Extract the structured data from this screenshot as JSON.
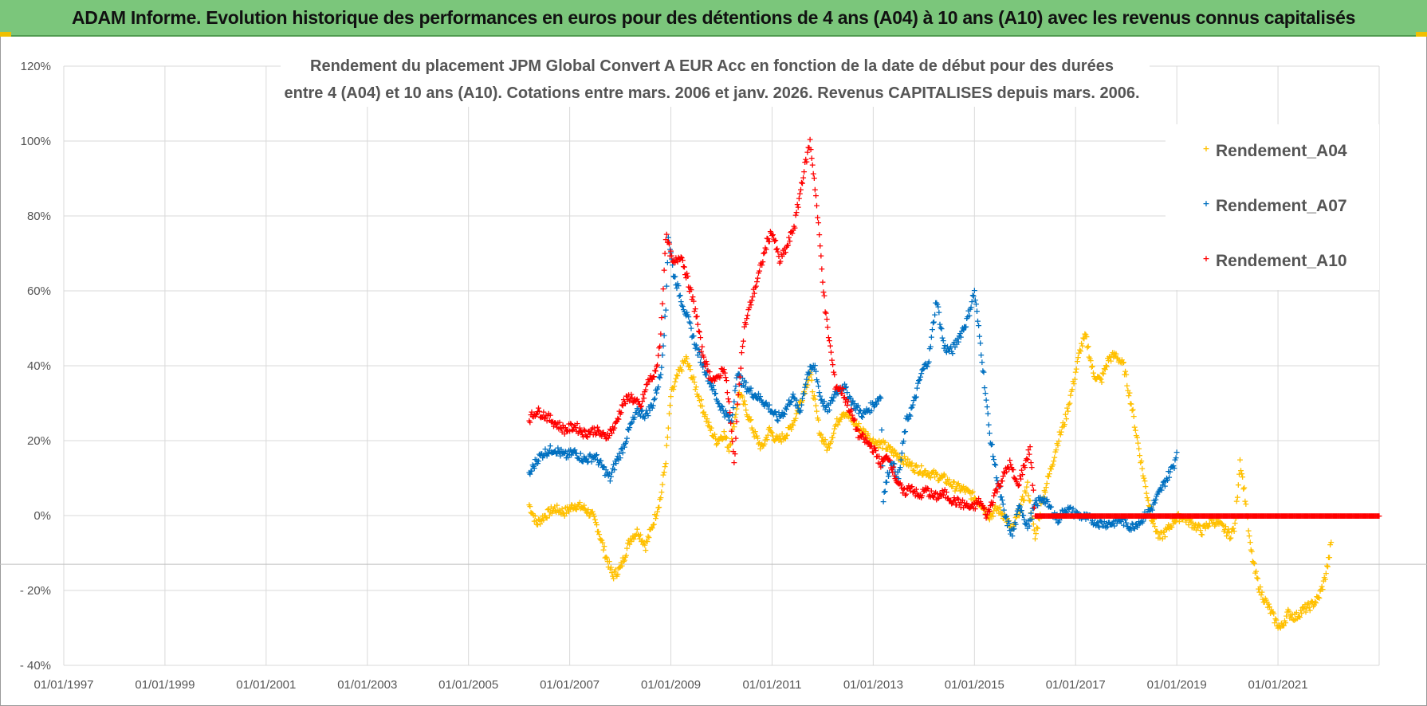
{
  "banner": {
    "text": "ADAM Informe. Evolution historique des performances en euros pour des détentions de 4 ans (A04) à 10 ans (A10) avec les revenus connus capitalisés"
  },
  "chart_data": {
    "type": "scatter",
    "title_lines": [
      "Rendement du placement JPM Global Convert A EUR Acc en fonction de la date de début pour des durées",
      "entre 4 (A04) et 10 ans (A10).  Cotations entre mars. 2006 et janv. 2026.  Revenus CAPITALISES depuis mars. 2006."
    ],
    "marker": "+",
    "xlim": [
      1997.0,
      2023.0
    ],
    "ylim": [
      -40,
      120
    ],
    "x_ticks": [
      1997,
      1999,
      2001,
      2003,
      2005,
      2007,
      2009,
      2011,
      2013,
      2015,
      2017,
      2019,
      2021
    ],
    "x_tick_labels": [
      "01/01/1997",
      "01/01/1999",
      "01/01/2001",
      "01/01/2003",
      "01/01/2005",
      "01/01/2007",
      "01/01/2009",
      "01/01/2011",
      "01/01/2013",
      "01/01/2015",
      "01/01/2017",
      "01/01/2019",
      "01/01/2021"
    ],
    "y_ticks": [
      -40,
      -20,
      0,
      20,
      40,
      60,
      80,
      100,
      120
    ],
    "y_tick_labels": [
      "- 40%",
      "- 20%",
      "0%",
      "20%",
      "40%",
      "60%",
      "80%",
      "100%",
      "120%"
    ],
    "grid": true,
    "legend_position": "top-right",
    "series": [
      {
        "name": "Rendement_A04",
        "color": "#ffc000",
        "points": [
          [
            2006.2,
            3
          ],
          [
            2006.35,
            -2
          ],
          [
            2006.5,
            0
          ],
          [
            2006.7,
            2
          ],
          [
            2006.9,
            1
          ],
          [
            2007.1,
            3
          ],
          [
            2007.3,
            2
          ],
          [
            2007.45,
            0
          ],
          [
            2007.55,
            -3
          ],
          [
            2007.7,
            -10
          ],
          [
            2007.85,
            -16
          ],
          [
            2008.0,
            -14
          ],
          [
            2008.2,
            -6
          ],
          [
            2008.35,
            -4
          ],
          [
            2008.5,
            -8
          ],
          [
            2008.65,
            -2
          ],
          [
            2008.8,
            5
          ],
          [
            2008.9,
            15
          ],
          [
            2009.0,
            32
          ],
          [
            2009.15,
            38
          ],
          [
            2009.3,
            42
          ],
          [
            2009.45,
            36
          ],
          [
            2009.6,
            30
          ],
          [
            2009.75,
            24
          ],
          [
            2009.9,
            20
          ],
          [
            2010.05,
            22
          ],
          [
            2010.15,
            18
          ],
          [
            2010.25,
            25
          ],
          [
            2010.35,
            33
          ],
          [
            2010.5,
            28
          ],
          [
            2010.65,
            22
          ],
          [
            2010.8,
            18
          ],
          [
            2010.95,
            23
          ],
          [
            2011.1,
            20
          ],
          [
            2011.3,
            22
          ],
          [
            2011.45,
            26
          ],
          [
            2011.6,
            32
          ],
          [
            2011.75,
            38
          ],
          [
            2011.85,
            30
          ],
          [
            2011.95,
            22
          ],
          [
            2012.1,
            18
          ],
          [
            2012.25,
            24
          ],
          [
            2012.4,
            28
          ],
          [
            2012.55,
            26
          ],
          [
            2012.7,
            24
          ],
          [
            2012.85,
            22
          ],
          [
            2013.0,
            20
          ],
          [
            2013.2,
            19
          ],
          [
            2013.4,
            17
          ],
          [
            2013.6,
            15
          ],
          [
            2013.8,
            13
          ],
          [
            2014.0,
            12
          ],
          [
            2014.2,
            11
          ],
          [
            2014.4,
            10
          ],
          [
            2014.6,
            8
          ],
          [
            2014.8,
            7
          ],
          [
            2015.0,
            5
          ],
          [
            2015.15,
            3
          ],
          [
            2015.3,
            0
          ],
          [
            2015.45,
            2
          ],
          [
            2015.6,
            0
          ],
          [
            2015.75,
            -4
          ],
          [
            2015.9,
            2
          ],
          [
            2016.05,
            8
          ],
          [
            2016.2,
            -6
          ],
          [
            2016.35,
            5
          ],
          [
            2016.5,
            12
          ],
          [
            2016.65,
            20
          ],
          [
            2016.8,
            26
          ],
          [
            2016.95,
            35
          ],
          [
            2017.1,
            45
          ],
          [
            2017.2,
            48
          ],
          [
            2017.35,
            38
          ],
          [
            2017.5,
            36
          ],
          [
            2017.65,
            42
          ],
          [
            2017.8,
            43
          ],
          [
            2017.95,
            40
          ],
          [
            2018.1,
            30
          ],
          [
            2018.2,
            22
          ],
          [
            2018.35,
            10
          ],
          [
            2018.5,
            0
          ],
          [
            2018.65,
            -6
          ],
          [
            2018.8,
            -4
          ],
          [
            2018.95,
            -1
          ],
          [
            2019.1,
            0
          ],
          [
            2019.3,
            -2
          ],
          [
            2019.5,
            -4
          ],
          [
            2019.7,
            -1
          ],
          [
            2019.9,
            -3
          ],
          [
            2020.05,
            -5
          ],
          [
            2020.15,
            -3
          ],
          [
            2020.25,
            15
          ],
          [
            2020.35,
            5
          ],
          [
            2020.45,
            -8
          ],
          [
            2020.55,
            -15
          ],
          [
            2020.65,
            -20
          ],
          [
            2020.8,
            -24
          ],
          [
            2020.95,
            -28
          ],
          [
            2021.05,
            -30
          ],
          [
            2021.2,
            -26
          ],
          [
            2021.35,
            -27
          ],
          [
            2021.5,
            -25
          ],
          [
            2021.65,
            -24
          ],
          [
            2021.8,
            -22
          ],
          [
            2021.9,
            -18
          ],
          [
            2022.0,
            -12
          ],
          [
            2022.05,
            -7
          ]
        ]
      },
      {
        "name": "Rendement_A07",
        "color": "#0070c0",
        "points": [
          [
            2006.2,
            11
          ],
          [
            2006.35,
            15
          ],
          [
            2006.5,
            17
          ],
          [
            2006.7,
            18
          ],
          [
            2006.9,
            16
          ],
          [
            2007.1,
            17
          ],
          [
            2007.3,
            15
          ],
          [
            2007.5,
            16
          ],
          [
            2007.65,
            13
          ],
          [
            2007.8,
            10
          ],
          [
            2007.9,
            14
          ],
          [
            2008.05,
            18
          ],
          [
            2008.2,
            24
          ],
          [
            2008.35,
            28
          ],
          [
            2008.5,
            27
          ],
          [
            2008.65,
            30
          ],
          [
            2008.8,
            38
          ],
          [
            2008.9,
            55
          ],
          [
            2008.95,
            75
          ],
          [
            2009.05,
            65
          ],
          [
            2009.2,
            58
          ],
          [
            2009.35,
            52
          ],
          [
            2009.5,
            45
          ],
          [
            2009.65,
            40
          ],
          [
            2009.8,
            35
          ],
          [
            2009.95,
            30
          ],
          [
            2010.1,
            27
          ],
          [
            2010.2,
            25
          ],
          [
            2010.3,
            38
          ],
          [
            2010.45,
            35
          ],
          [
            2010.6,
            33
          ],
          [
            2010.8,
            31
          ],
          [
            2010.95,
            29
          ],
          [
            2011.1,
            26
          ],
          [
            2011.25,
            28
          ],
          [
            2011.4,
            32
          ],
          [
            2011.55,
            28
          ],
          [
            2011.7,
            38
          ],
          [
            2011.85,
            40
          ],
          [
            2011.95,
            32
          ],
          [
            2012.1,
            28
          ],
          [
            2012.25,
            33
          ],
          [
            2012.4,
            35
          ],
          [
            2012.6,
            30
          ],
          [
            2012.8,
            27
          ],
          [
            2012.95,
            29
          ],
          [
            2013.15,
            32
          ],
          [
            2013.2,
            5
          ],
          [
            2013.35,
            15
          ],
          [
            2013.5,
            10
          ],
          [
            2013.65,
            25
          ],
          [
            2013.8,
            30
          ],
          [
            2013.95,
            38
          ],
          [
            2014.1,
            42
          ],
          [
            2014.25,
            58
          ],
          [
            2014.4,
            45
          ],
          [
            2014.55,
            44
          ],
          [
            2014.7,
            48
          ],
          [
            2014.85,
            52
          ],
          [
            2015.0,
            60
          ],
          [
            2015.15,
            42
          ],
          [
            2015.3,
            22
          ],
          [
            2015.45,
            10
          ],
          [
            2015.6,
            0
          ],
          [
            2015.75,
            -5
          ],
          [
            2015.9,
            3
          ],
          [
            2016.05,
            -3
          ],
          [
            2016.2,
            3
          ],
          [
            2016.35,
            5
          ],
          [
            2016.5,
            2
          ],
          [
            2016.65,
            -1
          ],
          [
            2016.8,
            2
          ],
          [
            2016.95,
            1
          ],
          [
            2017.1,
            0
          ],
          [
            2017.3,
            -1
          ],
          [
            2017.5,
            -2
          ],
          [
            2017.7,
            -2
          ],
          [
            2017.9,
            -1
          ],
          [
            2018.1,
            -3
          ],
          [
            2018.3,
            -1
          ],
          [
            2018.5,
            2
          ],
          [
            2018.65,
            6
          ],
          [
            2018.8,
            10
          ],
          [
            2018.95,
            14
          ],
          [
            2019.0,
            17
          ]
        ]
      },
      {
        "name": "Rendement_A10",
        "color": "#ff0000",
        "points": [
          [
            2006.2,
            26
          ],
          [
            2006.35,
            28
          ],
          [
            2006.5,
            27
          ],
          [
            2006.7,
            25
          ],
          [
            2006.9,
            23
          ],
          [
            2007.1,
            24
          ],
          [
            2007.3,
            22
          ],
          [
            2007.5,
            23
          ],
          [
            2007.7,
            21
          ],
          [
            2007.9,
            24
          ],
          [
            2008.05,
            30
          ],
          [
            2008.2,
            32
          ],
          [
            2008.4,
            29
          ],
          [
            2008.55,
            36
          ],
          [
            2008.7,
            38
          ],
          [
            2008.8,
            48
          ],
          [
            2008.9,
            75
          ],
          [
            2009.05,
            67
          ],
          [
            2009.2,
            70
          ],
          [
            2009.35,
            62
          ],
          [
            2009.5,
            54
          ],
          [
            2009.6,
            45
          ],
          [
            2009.75,
            38
          ],
          [
            2009.9,
            36
          ],
          [
            2010.05,
            40
          ],
          [
            2010.15,
            30
          ],
          [
            2010.25,
            14
          ],
          [
            2010.35,
            36
          ],
          [
            2010.45,
            50
          ],
          [
            2010.6,
            58
          ],
          [
            2010.75,
            65
          ],
          [
            2010.9,
            73
          ],
          [
            2011.0,
            76
          ],
          [
            2011.15,
            68
          ],
          [
            2011.3,
            72
          ],
          [
            2011.45,
            78
          ],
          [
            2011.6,
            90
          ],
          [
            2011.75,
            100
          ],
          [
            2011.85,
            88
          ],
          [
            2011.95,
            72
          ],
          [
            2012.05,
            55
          ],
          [
            2012.15,
            45
          ],
          [
            2012.25,
            35
          ],
          [
            2012.4,
            33
          ],
          [
            2012.55,
            28
          ],
          [
            2012.7,
            22
          ],
          [
            2012.85,
            20
          ],
          [
            2013.0,
            18
          ],
          [
            2013.15,
            14
          ],
          [
            2013.3,
            16
          ],
          [
            2013.45,
            10
          ],
          [
            2013.6,
            6
          ],
          [
            2013.75,
            8
          ],
          [
            2013.9,
            5
          ],
          [
            2014.05,
            7
          ],
          [
            2014.2,
            5
          ],
          [
            2014.4,
            6
          ],
          [
            2014.6,
            4
          ],
          [
            2014.8,
            3
          ],
          [
            2014.95,
            2
          ],
          [
            2015.1,
            4
          ],
          [
            2015.25,
            0
          ],
          [
            2015.4,
            6
          ],
          [
            2015.55,
            10
          ],
          [
            2015.7,
            14
          ],
          [
            2015.85,
            8
          ],
          [
            2016.0,
            14
          ],
          [
            2016.1,
            18
          ],
          [
            2016.2,
            0
          ],
          [
            2016.5,
            0
          ],
          [
            2016.8,
            0
          ],
          [
            2017.1,
            0
          ],
          [
            2017.4,
            0
          ],
          [
            2017.7,
            0
          ],
          [
            2018.0,
            0
          ],
          [
            2018.3,
            0
          ],
          [
            2018.6,
            0
          ],
          [
            2018.9,
            0
          ],
          [
            2019.2,
            0
          ],
          [
            2019.5,
            0
          ],
          [
            2019.8,
            0
          ],
          [
            2020.1,
            0
          ],
          [
            2020.4,
            0
          ],
          [
            2020.7,
            0
          ],
          [
            2021.0,
            0
          ],
          [
            2021.3,
            0
          ],
          [
            2021.6,
            0
          ],
          [
            2021.9,
            0
          ],
          [
            2022.2,
            0
          ],
          [
            2022.5,
            0
          ],
          [
            2022.8,
            0
          ],
          [
            2023.0,
            0
          ]
        ]
      }
    ]
  }
}
